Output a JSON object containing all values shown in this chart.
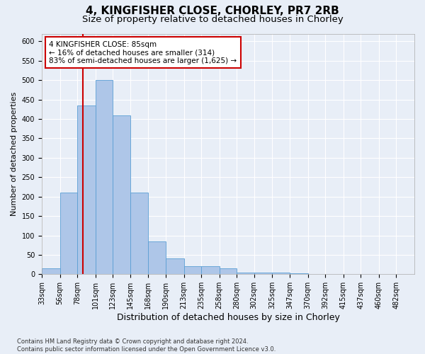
{
  "title1": "4, KINGFISHER CLOSE, CHORLEY, PR7 2RB",
  "title2": "Size of property relative to detached houses in Chorley",
  "xlabel": "Distribution of detached houses by size in Chorley",
  "ylabel": "Number of detached properties",
  "footnote": "Contains HM Land Registry data © Crown copyright and database right 2024.\nContains public sector information licensed under the Open Government Licence v3.0.",
  "bin_labels": [
    "33sqm",
    "56sqm",
    "78sqm",
    "101sqm",
    "123sqm",
    "145sqm",
    "168sqm",
    "190sqm",
    "213sqm",
    "235sqm",
    "258sqm",
    "280sqm",
    "302sqm",
    "325sqm",
    "347sqm",
    "370sqm",
    "392sqm",
    "415sqm",
    "437sqm",
    "460sqm",
    "482sqm"
  ],
  "bin_edges": [
    33,
    56,
    78,
    101,
    123,
    145,
    168,
    190,
    213,
    235,
    258,
    280,
    302,
    325,
    347,
    370,
    392,
    415,
    437,
    460,
    482,
    505
  ],
  "bar_values": [
    15,
    210,
    435,
    500,
    410,
    210,
    85,
    40,
    20,
    20,
    15,
    5,
    5,
    5,
    2,
    1,
    0,
    1,
    0,
    0,
    1
  ],
  "bar_color": "#aec6e8",
  "bar_edgecolor": "#5a9fd4",
  "property_size": 85,
  "red_line_color": "#cc0000",
  "annotation_text": "4 KINGFISHER CLOSE: 85sqm\n← 16% of detached houses are smaller (314)\n83% of semi-detached houses are larger (1,625) →",
  "annotation_box_edgecolor": "#cc0000",
  "annotation_box_facecolor": "#ffffff",
  "ylim": [
    0,
    620
  ],
  "yticks": [
    0,
    50,
    100,
    150,
    200,
    250,
    300,
    350,
    400,
    450,
    500,
    550,
    600
  ],
  "background_color": "#e8eef7",
  "plot_background": "#e8eef7",
  "grid_color": "#ffffff",
  "title1_fontsize": 11,
  "title2_fontsize": 9.5,
  "ylabel_fontsize": 8,
  "xlabel_fontsize": 9,
  "tick_fontsize": 7,
  "footnote_fontsize": 6
}
